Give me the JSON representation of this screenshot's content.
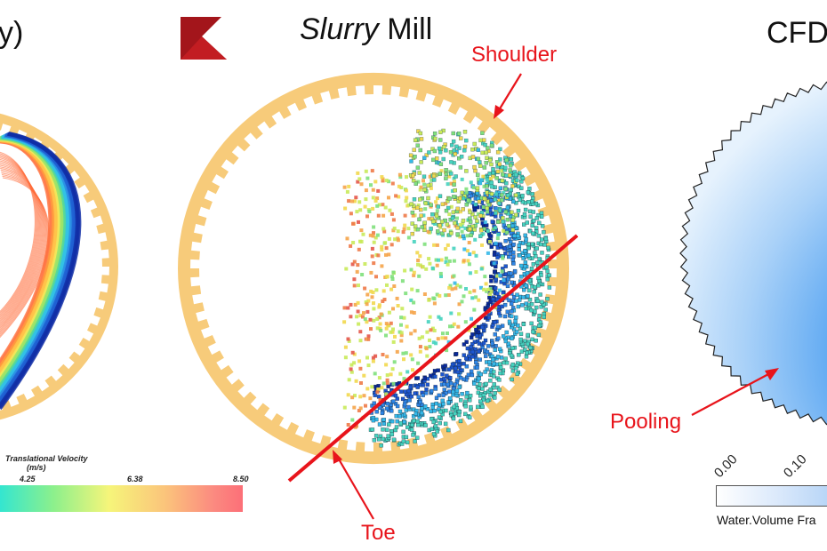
{
  "titles": {
    "left_fragment": "y)",
    "center_italic": "Slurry",
    "center_rest": " Mill",
    "right_fragment": "CFD"
  },
  "annotations": {
    "shoulder": "Shoulder",
    "toe": "Toe",
    "pooling": "Pooling"
  },
  "left_legend": {
    "title": "Translational Velocity",
    "unit": "(m/s)",
    "ticks": [
      "4.25",
      "6.38",
      "8.50"
    ]
  },
  "right_legend": {
    "ticks": [
      "0.00",
      "0.10"
    ],
    "title": "Water.Volume Fra"
  },
  "colors": {
    "liner": "#f7cb7a",
    "annotation_red": "#e8141b",
    "logo_red": "#a3151b"
  }
}
